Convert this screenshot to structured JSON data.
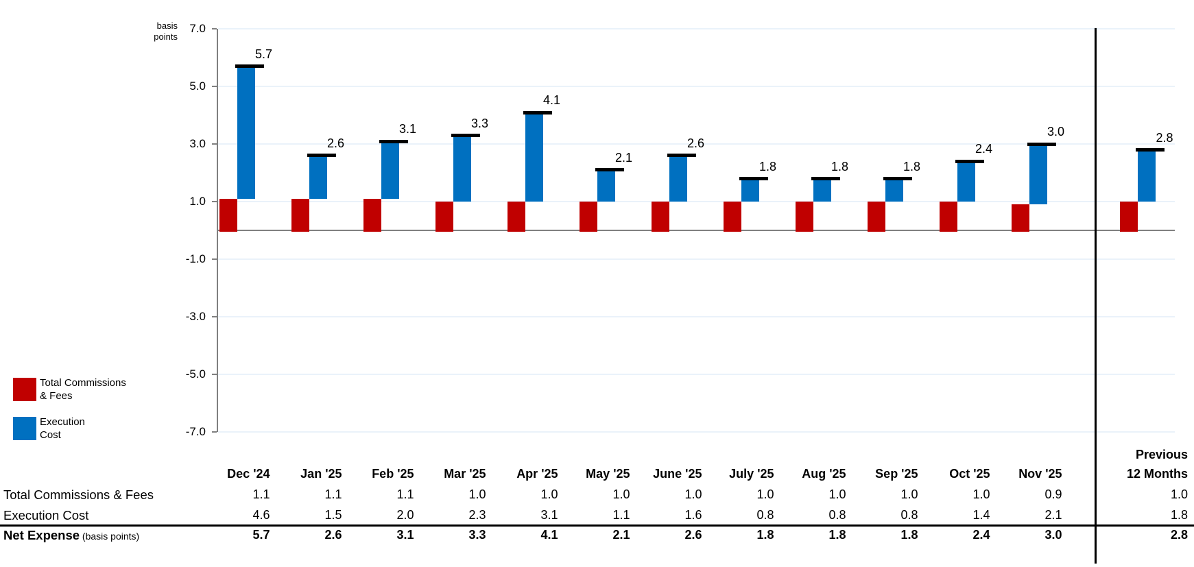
{
  "chart_data": {
    "type": "bar",
    "subtype": "stacked-waterfall-columns",
    "title": "",
    "unit_label": [
      "basis",
      "points"
    ],
    "categories": [
      "Dec '24",
      "Jan '25",
      "Feb '25",
      "Mar '25",
      "Apr '25",
      "May '25",
      "June '25",
      "July '25",
      "Aug '25",
      "Sep '25",
      "Oct '25",
      "Nov '25",
      "Previous 12 Months"
    ],
    "series": [
      {
        "name": "Total Commissions & Fees",
        "color": "#C00000",
        "values": [
          1.1,
          1.1,
          1.1,
          1.0,
          1.0,
          1.0,
          1.0,
          1.0,
          1.0,
          1.0,
          1.0,
          0.9,
          1.0
        ]
      },
      {
        "name": "Execution Cost",
        "color": "#0070C0",
        "values": [
          4.6,
          1.5,
          2.0,
          2.3,
          3.1,
          1.1,
          1.6,
          0.8,
          0.8,
          0.8,
          1.4,
          2.1,
          1.8
        ]
      }
    ],
    "totals": [
      "5.7",
      "2.6",
      "3.1",
      "3.3",
      "4.1",
      "2.1",
      "2.6",
      "1.8",
      "1.8",
      "1.8",
      "2.4",
      "3.0",
      "2.8"
    ],
    "ylim": [
      -7.0,
      7.0
    ],
    "yticks": [
      7.0,
      5.0,
      3.0,
      1.0,
      -1.0,
      -3.0,
      -5.0,
      -7.0
    ],
    "ytick_labels": [
      "7.0",
      "5.0",
      "3.0",
      "1.0",
      "-1.0",
      "-3.0",
      "-5.0",
      "-7.0"
    ],
    "grid": true,
    "legend_position": "bottom-left",
    "separator_before_last_category": true
  },
  "legend": {
    "items": [
      {
        "label_lines": [
          "Total Commissions",
          "& Fees"
        ],
        "color": "#C00000"
      },
      {
        "label_lines": [
          "Execution",
          "Cost"
        ],
        "color": "#0070C0"
      }
    ]
  },
  "table": {
    "month_columns": [
      "Dec '24",
      "Jan '25",
      "Feb '25",
      "Mar '25",
      "Apr '25",
      "May '25",
      "June '25",
      "July '25",
      "Aug '25",
      "Sep '25",
      "Oct '25",
      "Nov '25"
    ],
    "last_column_lines": [
      "Previous",
      "12 Months"
    ],
    "rows": [
      {
        "label": "Net Expense",
        "label_suffix": " (basis points)",
        "bold": true,
        "values": [
          "5.7",
          "2.6",
          "3.1",
          "3.3",
          "4.1",
          "2.1",
          "2.6",
          "1.8",
          "1.8",
          "1.8",
          "2.4",
          "3.0"
        ],
        "last_value": "2.8"
      },
      {
        "label": "Total Commissions & Fees",
        "label_suffix": "",
        "bold": false,
        "values": [
          "1.1",
          "1.1",
          "1.1",
          "1.0",
          "1.0",
          "1.0",
          "1.0",
          "1.0",
          "1.0",
          "1.0",
          "1.0",
          "0.9"
        ],
        "last_value": "1.0"
      },
      {
        "label": "Execution Cost",
        "label_suffix": "",
        "bold": false,
        "values": [
          "4.6",
          "1.5",
          "2.0",
          "2.3",
          "3.1",
          "1.1",
          "1.6",
          "0.8",
          "0.8",
          "0.8",
          "1.4",
          "2.1"
        ],
        "last_value": "1.8"
      }
    ],
    "row_order_display": [
      "Total Commissions & Fees",
      "Execution Cost",
      "Net Expense"
    ]
  },
  "colors": {
    "commissions_red": "#C00000",
    "execution_blue": "#0070C0",
    "gridline": "#eaf2fa",
    "axis_gray": "#808080",
    "separator_black": "#000000"
  }
}
